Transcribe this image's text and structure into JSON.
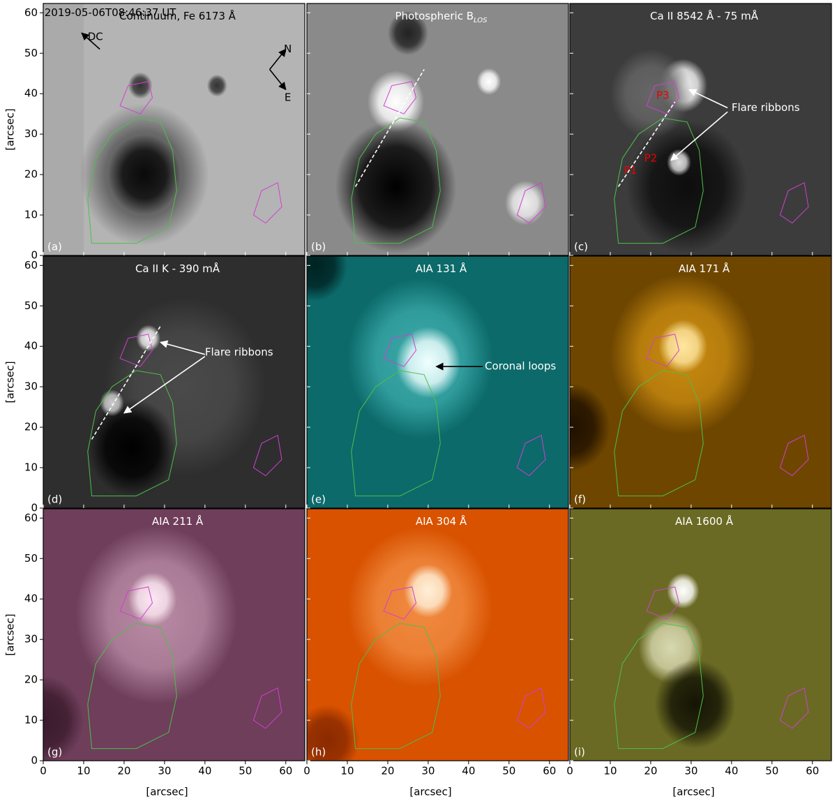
{
  "figure": {
    "xlabel": "[arcsec]",
    "ylabel": "[arcsec]",
    "xlim": [
      0,
      64.7
    ],
    "ylim": [
      0,
      62.3
    ],
    "xticks": [
      0,
      10,
      20,
      30,
      40,
      50,
      60
    ],
    "yticks": [
      0,
      10,
      20,
      30,
      40,
      50,
      60
    ],
    "panels": [
      {
        "label": "(a)",
        "title": {
          "text": "Continuum, Fe 6173 Å"
        },
        "annotations": [
          "2019-05-06T08:46:37 UT",
          "DC",
          "N",
          "E"
        ]
      },
      {
        "label": "(b)",
        "title": {
          "text": "Photospheric B",
          "sub": "LOS"
        }
      },
      {
        "label": "(c)",
        "title": {
          "text": "Ca II 8542 Å - 75 mÅ"
        },
        "annotations": [
          "P3",
          "P2",
          "P1",
          "Flare ribbons"
        ]
      },
      {
        "label": "(d)",
        "title": {
          "text": "Ca II K - 390 mÅ"
        },
        "annotations": [
          "Flare ribbons"
        ]
      },
      {
        "label": "(e)",
        "title": {
          "text": "AIA 131 Å"
        },
        "annotations": [
          "Coronal loops"
        ]
      },
      {
        "label": "(f)",
        "title": {
          "text": "AIA 171 Å"
        }
      },
      {
        "label": "(g)",
        "title": {
          "text": "AIA 211 Å"
        }
      },
      {
        "label": "(h)",
        "title": {
          "text": "AIA 304 Å"
        }
      },
      {
        "label": "(i)",
        "title": {
          "text": "AIA 1600 Å"
        }
      }
    ]
  }
}
